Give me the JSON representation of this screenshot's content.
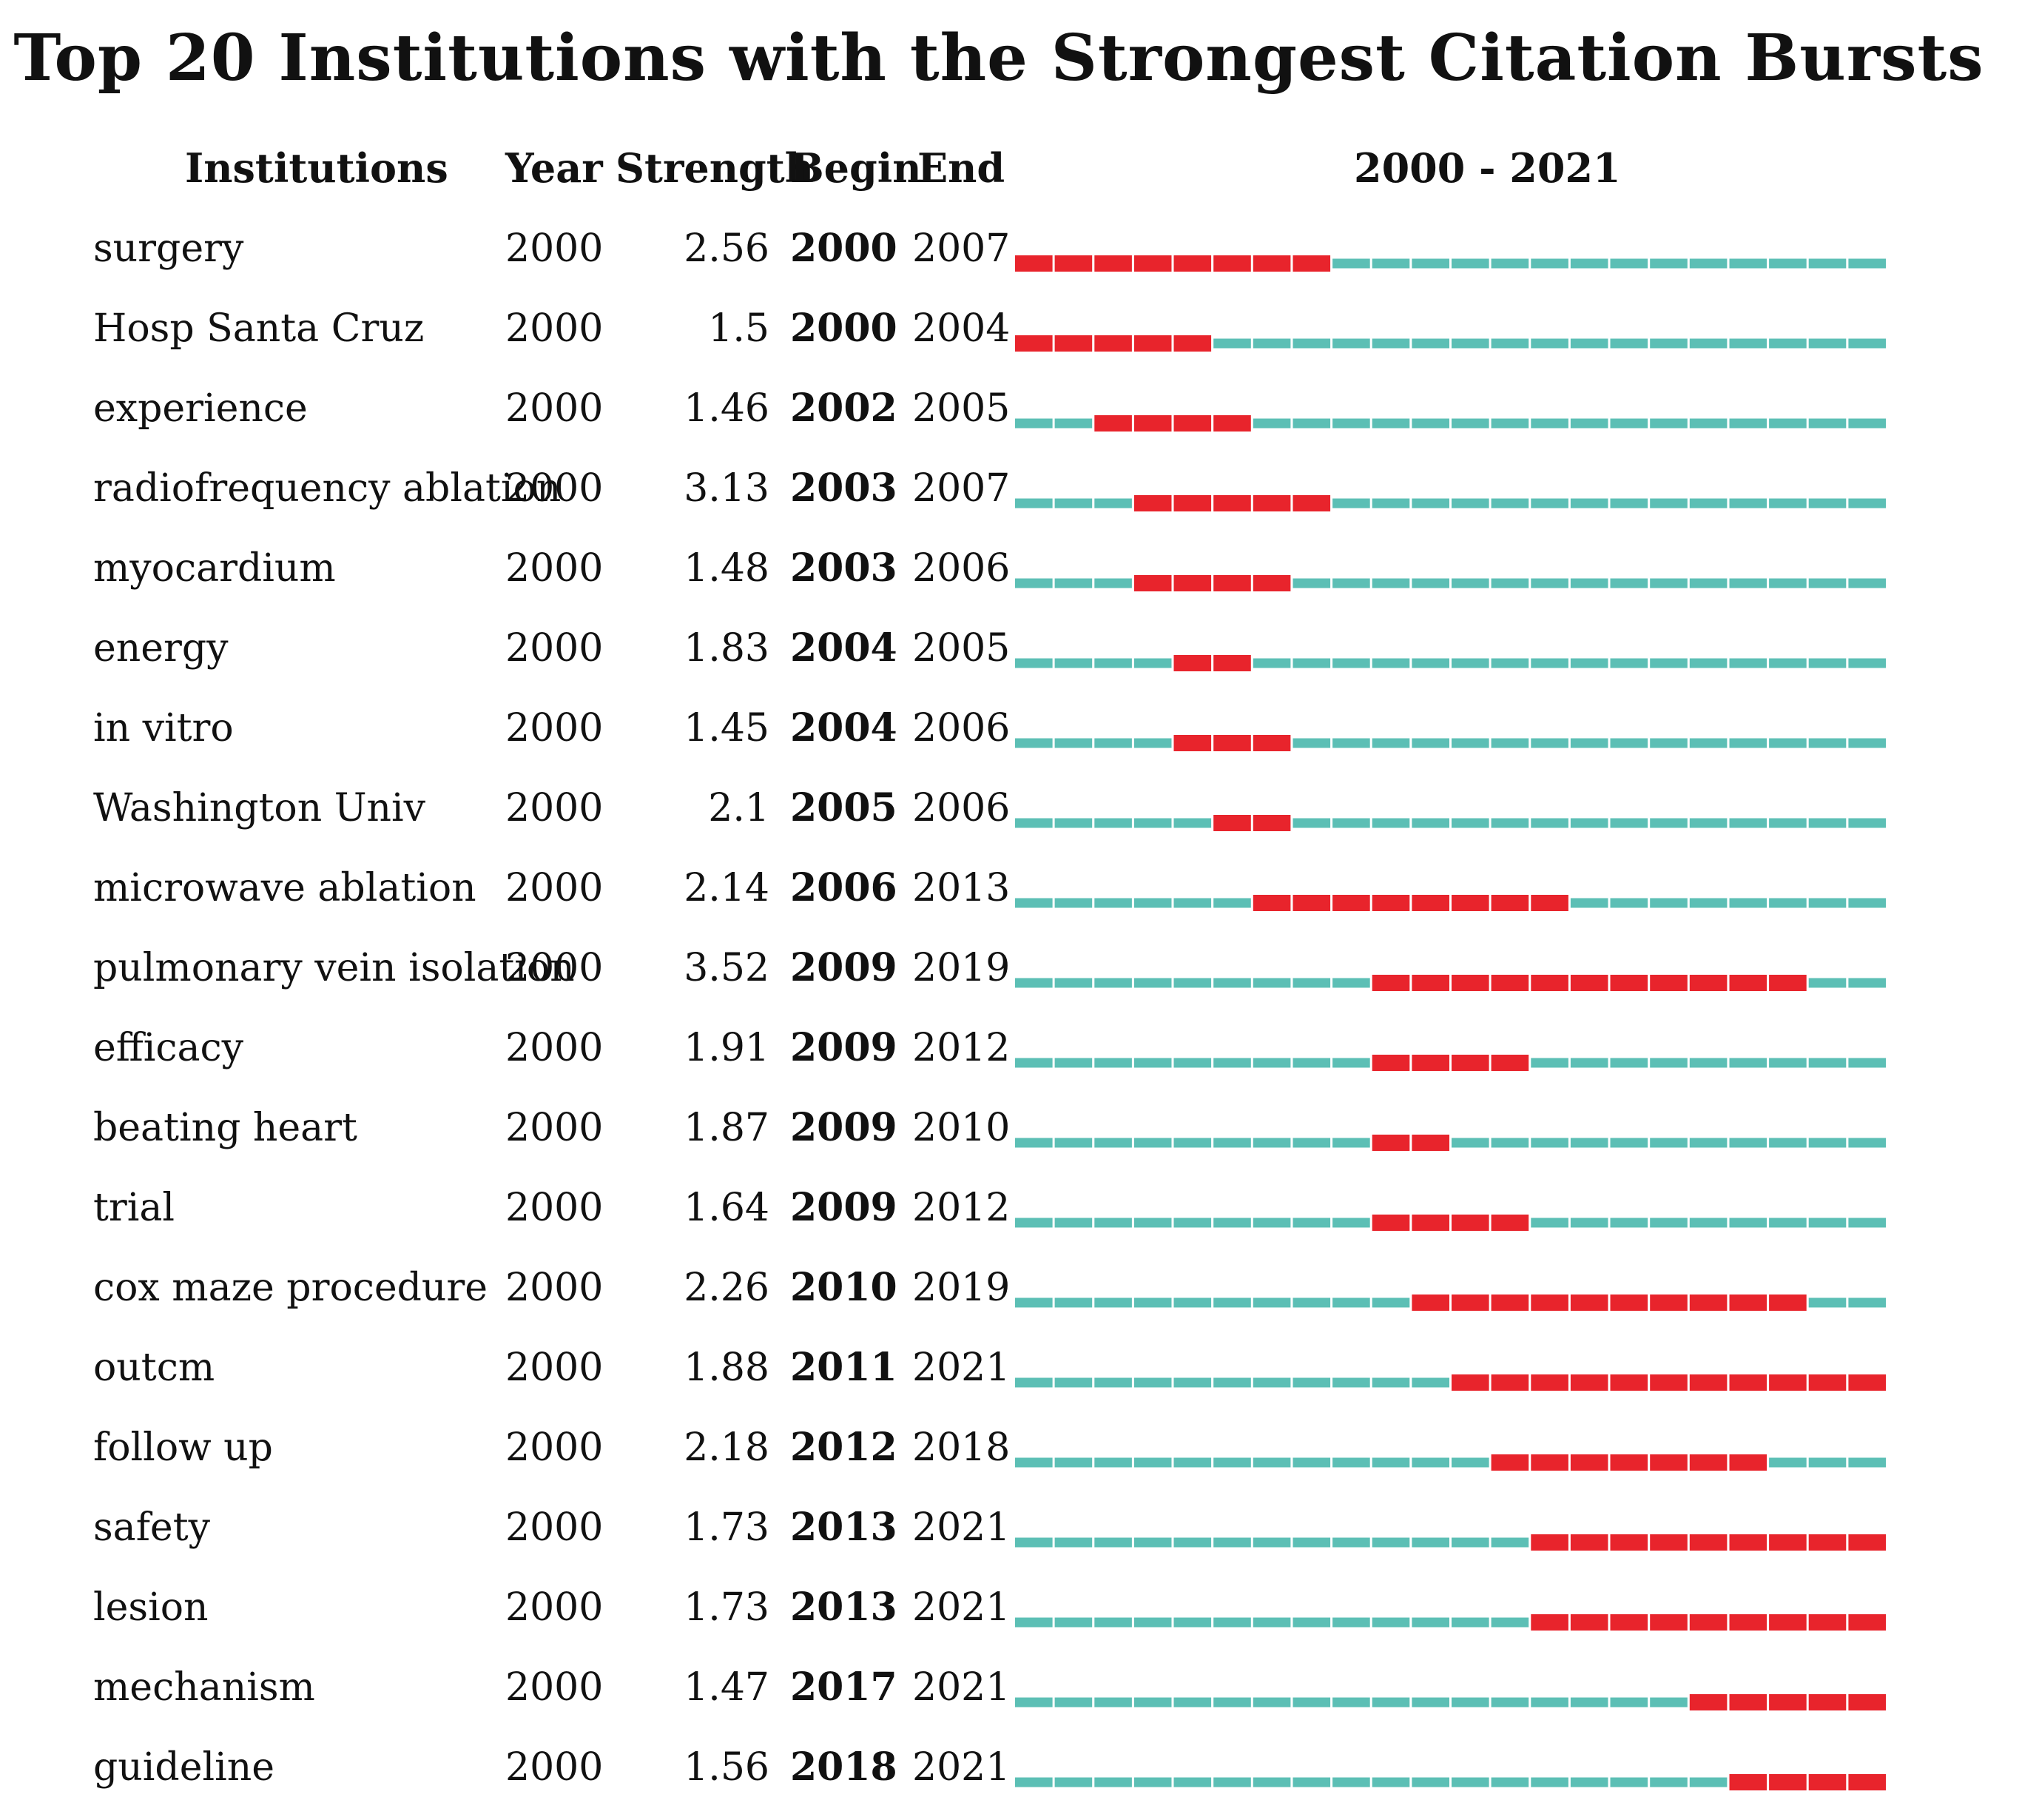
{
  "chart_data": {
    "type": "table",
    "title": "Top 20 Institutions with the Strongest Citation Bursts",
    "columns": [
      "Institutions",
      "Year",
      "Strength",
      "Begin",
      "End",
      "2000 - 2021"
    ],
    "range": [
      2000,
      2021
    ],
    "colors": {
      "burst": "#e8242c",
      "baseline": "#5cbfb5"
    },
    "rows": [
      {
        "name": "surgery",
        "year": "2000",
        "strength": "2.56",
        "begin": "2000",
        "end": "2007"
      },
      {
        "name": "Hosp Santa Cruz",
        "year": "2000",
        "strength": "1.5",
        "begin": "2000",
        "end": "2004"
      },
      {
        "name": "experience",
        "year": "2000",
        "strength": "1.46",
        "begin": "2002",
        "end": "2005"
      },
      {
        "name": "radiofrequency ablation",
        "year": "2000",
        "strength": "3.13",
        "begin": "2003",
        "end": "2007"
      },
      {
        "name": "myocardium",
        "year": "2000",
        "strength": "1.48",
        "begin": "2003",
        "end": "2006"
      },
      {
        "name": "energy",
        "year": "2000",
        "strength": "1.83",
        "begin": "2004",
        "end": "2005"
      },
      {
        "name": "in vitro",
        "year": "2000",
        "strength": "1.45",
        "begin": "2004",
        "end": "2006"
      },
      {
        "name": "Washington Univ",
        "year": "2000",
        "strength": "2.1",
        "begin": "2005",
        "end": "2006"
      },
      {
        "name": "microwave ablation",
        "year": "2000",
        "strength": "2.14",
        "begin": "2006",
        "end": "2013"
      },
      {
        "name": "pulmonary vein isolation",
        "year": "2000",
        "strength": "3.52",
        "begin": "2009",
        "end": "2019"
      },
      {
        "name": "efficacy",
        "year": "2000",
        "strength": "1.91",
        "begin": "2009",
        "end": "2012"
      },
      {
        "name": "beating heart",
        "year": "2000",
        "strength": "1.87",
        "begin": "2009",
        "end": "2010"
      },
      {
        "name": "trial",
        "year": "2000",
        "strength": "1.64",
        "begin": "2009",
        "end": "2012"
      },
      {
        "name": "cox maze procedure",
        "year": "2000",
        "strength": "2.26",
        "begin": "2010",
        "end": "2019"
      },
      {
        "name": "outcm",
        "year": "2000",
        "strength": "1.88",
        "begin": "2011",
        "end": "2021"
      },
      {
        "name": "follow up",
        "year": "2000",
        "strength": "2.18",
        "begin": "2012",
        "end": "2018"
      },
      {
        "name": "safety",
        "year": "2000",
        "strength": "1.73",
        "begin": "2013",
        "end": "2021"
      },
      {
        "name": "lesion",
        "year": "2000",
        "strength": "1.73",
        "begin": "2013",
        "end": "2021"
      },
      {
        "name": "mechanism",
        "year": "2000",
        "strength": "1.47",
        "begin": "2017",
        "end": "2021"
      },
      {
        "name": "guideline",
        "year": "2000",
        "strength": "1.56",
        "begin": "2018",
        "end": "2021"
      }
    ]
  }
}
